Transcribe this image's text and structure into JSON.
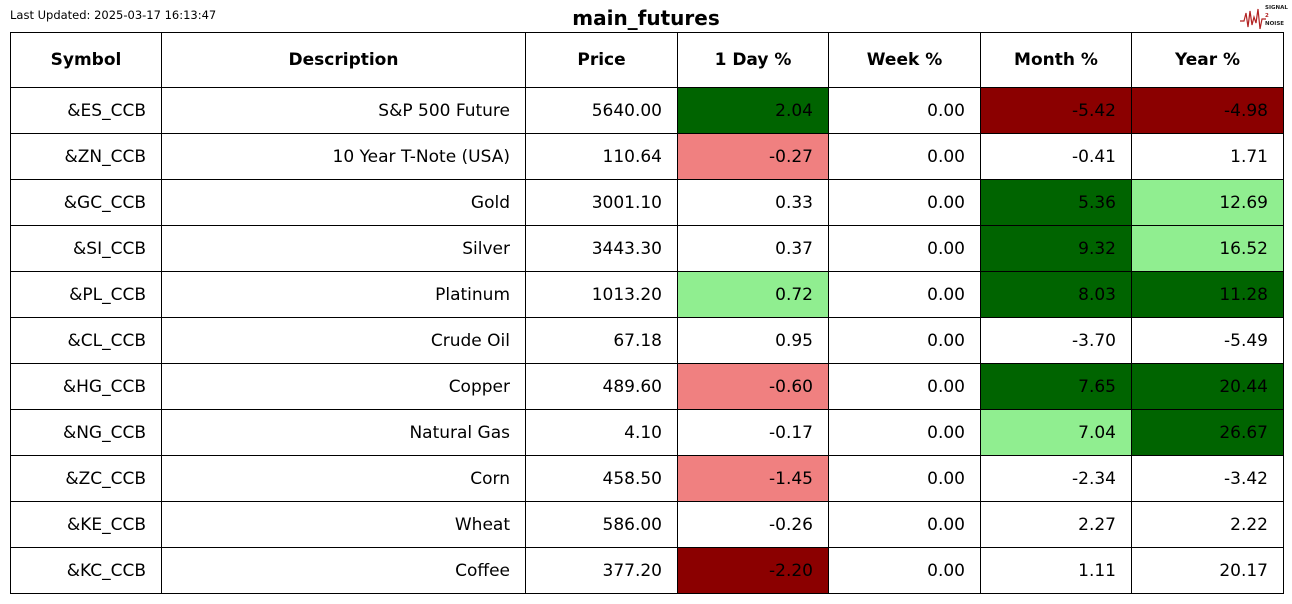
{
  "header": {
    "updated": "Last Updated: 2025-03-17 16:13:47",
    "title": "main_futures",
    "logo": [
      "SIGNAL",
      "2",
      "NOISE"
    ]
  },
  "table": {
    "columns": [
      "Symbol",
      "Description",
      "Price",
      "1 Day %",
      "Week %",
      "Month %",
      "Year %"
    ],
    "rows": [
      [
        "&ES_CCB",
        "S&P 500 Future",
        "5640.00",
        "2.04",
        "0.00",
        "-5.42",
        "-4.98"
      ],
      [
        "&ZN_CCB",
        "10 Year T-Note (USA)",
        "110.64",
        "-0.27",
        "0.00",
        "-0.41",
        "1.71"
      ],
      [
        "&GC_CCB",
        "Gold",
        "3001.10",
        "0.33",
        "0.00",
        "5.36",
        "12.69"
      ],
      [
        "&SI_CCB",
        "Silver",
        "3443.30",
        "0.37",
        "0.00",
        "9.32",
        "16.52"
      ],
      [
        "&PL_CCB",
        "Platinum",
        "1013.20",
        "0.72",
        "0.00",
        "8.03",
        "11.28"
      ],
      [
        "&CL_CCB",
        "Crude Oil",
        "67.18",
        "0.95",
        "0.00",
        "-3.70",
        "-5.49"
      ],
      [
        "&HG_CCB",
        "Copper",
        "489.60",
        "-0.60",
        "0.00",
        "7.65",
        "20.44"
      ],
      [
        "&NG_CCB",
        "Natural Gas",
        "4.10",
        "-0.17",
        "0.00",
        "7.04",
        "26.67"
      ],
      [
        "&ZC_CCB",
        "Corn",
        "458.50",
        "-1.45",
        "0.00",
        "-2.34",
        "-3.42"
      ],
      [
        "&KE_CCB",
        "Wheat",
        "586.00",
        "-0.26",
        "0.00",
        "2.27",
        "2.22"
      ],
      [
        "&KC_CCB",
        "Coffee",
        "377.20",
        "-2.20",
        "0.00",
        "1.11",
        "20.17"
      ]
    ],
    "fills": [
      [
        null,
        null,
        null,
        "#006400",
        null,
        "#8b0000",
        "#8b0000"
      ],
      [
        null,
        null,
        null,
        "#f08080",
        null,
        null,
        null
      ],
      [
        null,
        null,
        null,
        null,
        null,
        "#006400",
        "#90ee90"
      ],
      [
        null,
        null,
        null,
        null,
        null,
        "#006400",
        "#90ee90"
      ],
      [
        null,
        null,
        null,
        "#90ee90",
        null,
        "#006400",
        "#006400"
      ],
      [
        null,
        null,
        null,
        null,
        null,
        null,
        null
      ],
      [
        null,
        null,
        null,
        "#f08080",
        null,
        "#006400",
        "#006400"
      ],
      [
        null,
        null,
        null,
        null,
        null,
        "#90ee90",
        "#006400"
      ],
      [
        null,
        null,
        null,
        "#f08080",
        null,
        null,
        null
      ],
      [
        null,
        null,
        null,
        null,
        null,
        null,
        null
      ],
      [
        null,
        null,
        null,
        "#8b0000",
        null,
        null,
        null
      ]
    ]
  }
}
